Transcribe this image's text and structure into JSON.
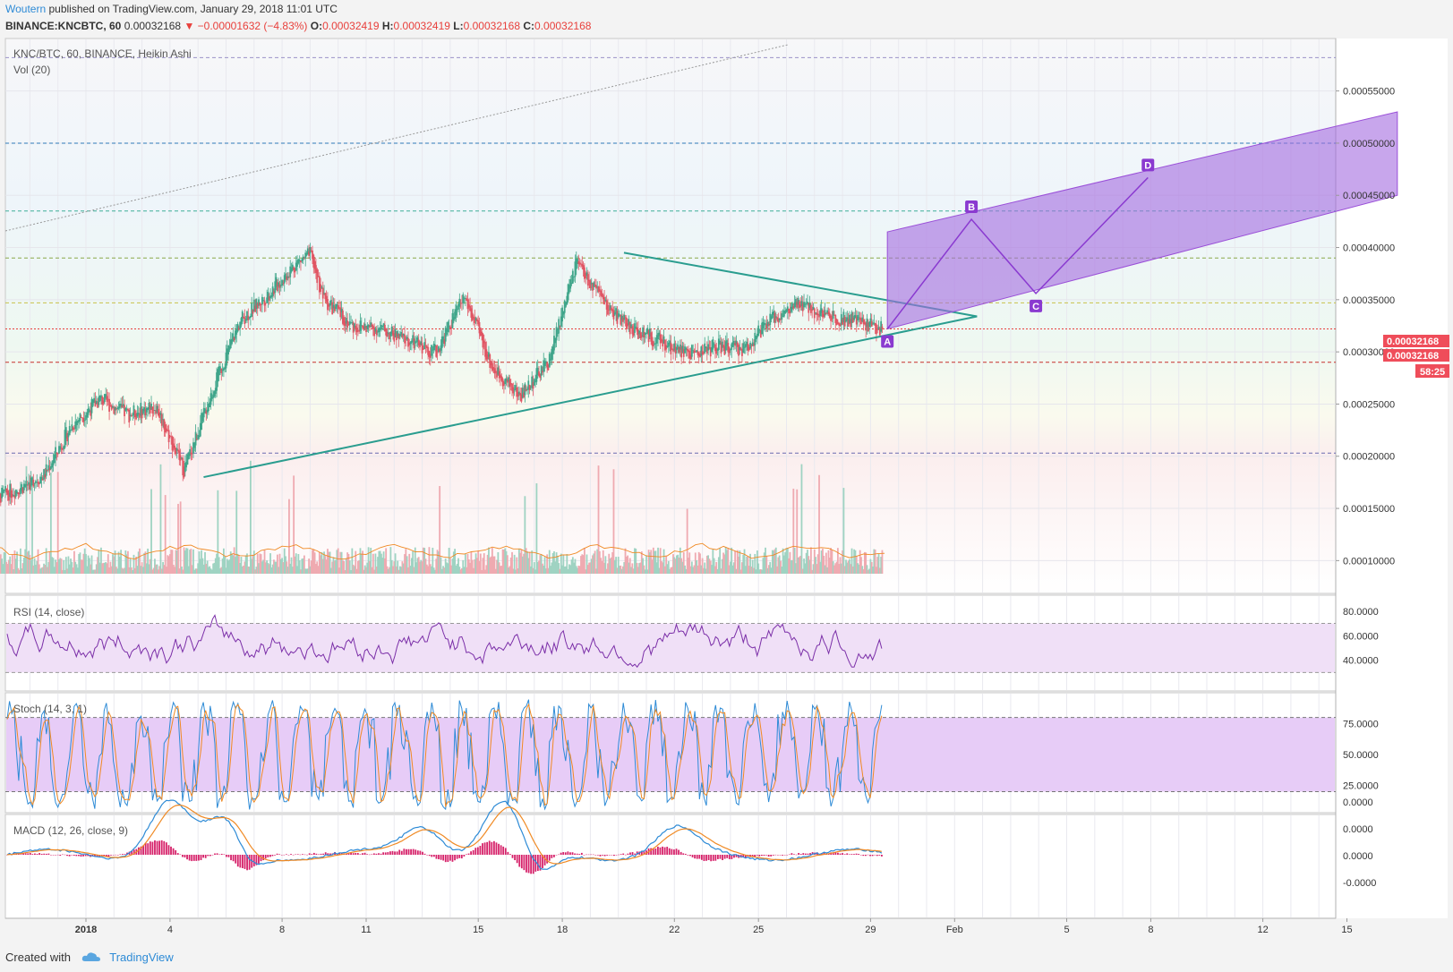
{
  "header": {
    "author": "Woutern",
    "published": "published on TradingView.com, January 29, 2018 11:01 UTC",
    "symbol": "BINANCE:KNCBTC, 60",
    "price": "0.00032168",
    "change": "▼ −0.00001632 (−4.83%)",
    "o_label": "O:",
    "o": "0.00032419",
    "h_label": "H:",
    "h": "0.00032419",
    "l_label": "L:",
    "l": "0.00032168",
    "c_label": "C:",
    "c": "0.00032168"
  },
  "panes": {
    "main_title": "KNC/BTC, 60, BINANCE, Heikin Ashi",
    "vol_title": "Vol (20)",
    "rsi_title": "RSI (14, close)",
    "stoch_title": "Stoch (14, 3, 1)",
    "macd_title": "MACD (12, 26, close, 9)"
  },
  "price_tags": {
    "last": "0.00032168",
    "last2": "0.00032168",
    "timer": "58:25"
  },
  "pattern_labels": [
    "A",
    "B",
    "C",
    "D"
  ],
  "footer": {
    "created_with": "Created with",
    "brand": "TradingView"
  },
  "colors": {
    "up": "#3fa58a",
    "down": "#e05563",
    "trend": "#2a9d8f",
    "channel": "#a36ae0",
    "rsi": "#7b2fa8",
    "macd": "#2e8bd6",
    "signal": "#f08a24",
    "hist": "#d6226a"
  },
  "chart_data": [
    {
      "type": "line",
      "title": "KNC/BTC, 60, BINANCE, Heikin Ashi",
      "x_tick_labels": [
        "2018",
        "4",
        "8",
        "11",
        "15",
        "18",
        "22",
        "25",
        "29",
        "Feb",
        "5",
        "8",
        "12",
        "15"
      ],
      "y_tick_labels": [
        "0.00055000",
        "0.00050000",
        "0.00045000",
        "0.00040000",
        "0.00035000",
        "0.00030000",
        "0.00025000",
        "0.00020000",
        "0.00015000",
        "0.00010000"
      ],
      "ylim": [
        7.2e-05,
        0.00059
      ],
      "series": [
        {
          "x": [
            -2.5,
            -1.5,
            -0.5,
            0.5,
            1.5,
            2.5,
            3.5,
            4.5,
            5.5,
            6.5,
            7.5,
            8.5,
            9,
            9.5,
            10.5,
            11.5,
            12.5,
            13.5,
            14.5,
            15.5,
            16.5,
            17.5,
            18.5,
            19.5,
            20.5,
            21.5,
            22.5,
            23.5,
            24.5,
            25.5,
            26.5,
            27.5,
            28.5,
            29.4
          ],
          "values": [
            0.000157,
            0.000168,
            0.000182,
            0.00023,
            0.000255,
            0.00024,
            0.000248,
            0.000187,
            0.000262,
            0.00033,
            0.000355,
            0.000385,
            0.000393,
            0.00035,
            0.000325,
            0.000322,
            0.00031,
            0.0003,
            0.000353,
            0.000285,
            0.000258,
            0.00029,
            0.000385,
            0.000345,
            0.000322,
            0.00031,
            0.000298,
            0.000305,
            0.000303,
            0.000332,
            0.000345,
            0.000335,
            0.00033,
            0.00032168
          ]
        }
      ],
      "trendlines": {
        "upper": [
          [
            20.2,
            0.000395
          ],
          [
            32.8,
            0.000334
          ]
        ],
        "lower": [
          [
            5.2,
            0.00018
          ],
          [
            32.8,
            0.000334
          ]
        ],
        "channel": [
          [
            29.6,
            0.000415
          ],
          [
            47.8,
            0.00053
          ],
          [
            47.8,
            0.00045
          ],
          [
            29.6,
            0.000322
          ]
        ],
        "abcd": [
          [
            29.6,
            0.000322
          ],
          [
            32.6,
            0.000427
          ],
          [
            34.9,
            0.000356
          ],
          [
            38.9,
            0.000467
          ]
        ]
      },
      "horizontal_levels": [
        0.000582,
        0.0005,
        0.000435,
        0.00039,
        0.000347,
        0.000322,
        0.00029,
        0.000203
      ]
    },
    {
      "type": "bar",
      "title": "Vol (20)"
    },
    {
      "type": "line",
      "title": "RSI (14, close)",
      "y_tick_labels": [
        "80.0000",
        "60.0000",
        "40.0000"
      ],
      "ylim": [
        15,
        93
      ],
      "bands": [
        30,
        70
      ]
    },
    {
      "type": "line",
      "title": "Stoch (14, 3, 1)",
      "y_tick_labels": [
        "75.0000",
        "50.0000",
        "25.0000"
      ],
      "ylim": [
        3,
        100
      ],
      "bands": [
        20,
        80
      ]
    },
    {
      "type": "line",
      "title": "MACD (12, 26, close, 9)",
      "y_tick_labels": [
        "0.0000",
        "0.0000",
        "0.0000",
        "-0.0000"
      ]
    }
  ]
}
